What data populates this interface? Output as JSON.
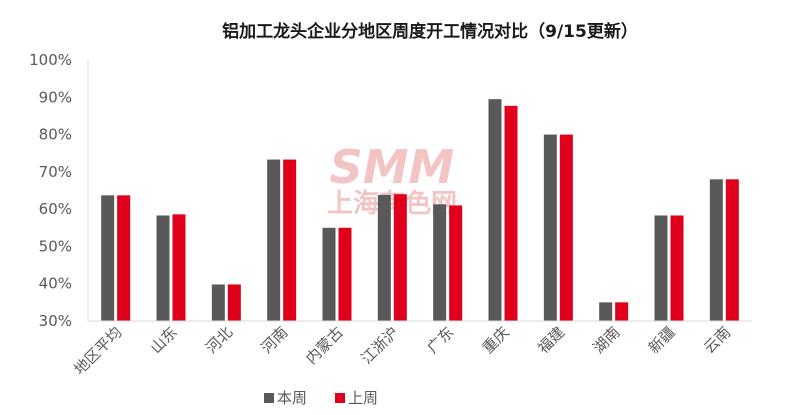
{
  "chart_data": {
    "type": "bar",
    "title": "铝加工龙头企业分地区周度开工情况对比（9/15更新）",
    "categories": [
      "地区平均",
      "山东",
      "河北",
      "河南",
      "内蒙古",
      "江浙沪",
      "广东",
      "重庆",
      "福建",
      "湖南",
      "新疆",
      "云南"
    ],
    "series": [
      {
        "name": "本周",
        "color": "#595959",
        "values": [
          63.7,
          58.3,
          39.8,
          73.3,
          55.0,
          63.8,
          61.3,
          89.5,
          80.0,
          35.0,
          58.3,
          68.0
        ]
      },
      {
        "name": "上周",
        "color": "#e0001b",
        "values": [
          63.7,
          58.6,
          39.8,
          73.3,
          55.0,
          64.0,
          61.0,
          87.7,
          80.0,
          35.0,
          58.3,
          68.0
        ]
      }
    ],
    "ylim": [
      30,
      100
    ],
    "yticks": [
      "30%",
      "40%",
      "50%",
      "60%",
      "70%",
      "80%",
      "90%",
      "100%"
    ],
    "ytick_values": [
      30,
      40,
      50,
      60,
      70,
      80,
      90,
      100
    ],
    "xlabel": "",
    "ylabel": "",
    "grid": false,
    "legend_position": "bottom-center"
  },
  "watermark": {
    "logo_text": "SMM",
    "logo_subtext": "上海有色网"
  }
}
